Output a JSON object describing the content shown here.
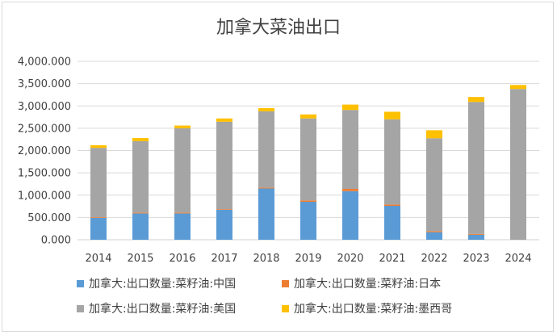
{
  "chart_data": {
    "type": "bar",
    "stacked": true,
    "title": "加拿大菜油出口",
    "categories": [
      "2014",
      "2015",
      "2016",
      "2017",
      "2018",
      "2019",
      "2020",
      "2021",
      "2022",
      "2023",
      "2024"
    ],
    "series": [
      {
        "name": "加拿大:出口数量:菜籽油:中国",
        "color": "#5b9bd5",
        "values": [
          490,
          590,
          590,
          670,
          1150,
          850,
          1090,
          760,
          170,
          110,
          0
        ]
      },
      {
        "name": "加拿大:出口数量:菜籽油:日本",
        "color": "#ed7d31",
        "values": [
          15,
          20,
          20,
          15,
          20,
          30,
          50,
          30,
          25,
          20,
          0
        ]
      },
      {
        "name": "加拿大:出口数量:菜籽油:美国",
        "color": "#a5a5a5",
        "values": [
          1555,
          1600,
          1890,
          1960,
          1710,
          1840,
          1770,
          1910,
          2080,
          2960,
          3380
        ]
      },
      {
        "name": "加拿大:出口数量:菜籽油:墨西哥",
        "color": "#ffc000",
        "values": [
          60,
          70,
          60,
          75,
          70,
          90,
          120,
          170,
          180,
          110,
          90
        ]
      }
    ],
    "ylim": [
      0,
      4000
    ],
    "yticks": [
      0,
      500,
      1000,
      1500,
      2000,
      2500,
      3000,
      3500,
      4000
    ],
    "ytick_labels": [
      "0.000",
      "500.000",
      "1,000.000",
      "1,500.000",
      "2,000.000",
      "2,500.000",
      "3,000.000",
      "3,500.000",
      "4,000.000"
    ],
    "grid": true,
    "legend_position": "bottom"
  }
}
